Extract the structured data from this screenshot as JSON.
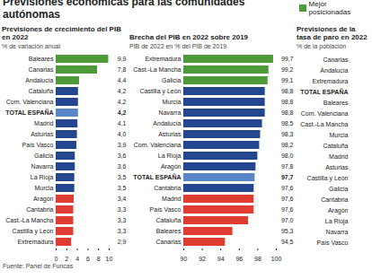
{
  "title": "Previsiones económicas para las comunidades autónomas",
  "legend": {
    "label": "Mejor posicionadas",
    "color": "#4e9a3a"
  },
  "source": "Fuente: Panel de Funcas",
  "chart_data": [
    {
      "type": "bar",
      "orientation": "horizontal",
      "title": "Previsiones de crecimiento del PIB en 2022",
      "subtitle": "% de variación anual",
      "categories": [
        "Baleares",
        "Canarias",
        "Andalucía",
        "Cataluña",
        "Com. Valenciana",
        "TOTAL ESPAÑA",
        "Madrid",
        "Asturias",
        "País Vasco",
        "Galicia",
        "Navarra",
        "La Rioja",
        "Murcia",
        "Aragón",
        "Cantabria",
        "Cast.-La Mancha",
        "Castilla y León",
        "Extremadura"
      ],
      "values": [
        9.9,
        7.8,
        4.4,
        4.2,
        4.2,
        4.2,
        4.1,
        4.0,
        3.9,
        3.6,
        3.6,
        3.5,
        3.5,
        3.4,
        3.3,
        3.3,
        3.3,
        2.9
      ],
      "value_labels": [
        "9,9",
        "7,8",
        "4,4",
        "4,2",
        "4,2",
        "4,2",
        "4,1",
        "4,0",
        "3,9",
        "3,6",
        "3,6",
        "3,5",
        "3,5",
        "3,4",
        "3,3",
        "3,3",
        "3,3",
        "2,9"
      ],
      "colors": [
        "#4e9a3a",
        "#4e9a3a",
        "#4e9a3a",
        "#24468e",
        "#24468e",
        "#5a86c8",
        "#24468e",
        "#24468e",
        "#24468e",
        "#24468e",
        "#24468e",
        "#24468e",
        "#24468e",
        "#e03c31",
        "#e03c31",
        "#e03c31",
        "#e03c31",
        "#e03c31"
      ],
      "xlim": [
        0,
        10
      ],
      "xticks": [
        0,
        2,
        4,
        6,
        8,
        10
      ],
      "data_labels": true,
      "grid": false
    },
    {
      "type": "bar",
      "orientation": "horizontal",
      "title": "Brecha del PIB en 2022 sobre 2019",
      "subtitle": "PIB de 2022 en % del PIB de 2019",
      "categories": [
        "Extremadura",
        "Cast.-La Mancha",
        "Galicia",
        "Castilla y León",
        "Murcia",
        "Navarra",
        "Andalucía",
        "Asturias",
        "Com. Valenciana",
        "La Rioja",
        "Aragón",
        "TOTAL ESPAÑA",
        "Cantabria",
        "Madrid",
        "País Vasco",
        "Cataluña",
        "Baleares",
        "Canarias"
      ],
      "values": [
        99.7,
        99.2,
        99.1,
        98.8,
        98.8,
        98.8,
        98.5,
        98.3,
        98.2,
        98.0,
        97.8,
        97.7,
        97.6,
        97.6,
        97.6,
        97.0,
        95.3,
        94.5
      ],
      "value_labels": [
        "99,7",
        "99,2",
        "99,1",
        "98,8",
        "98,8",
        "98,8",
        "98,5",
        "98,3",
        "98,2",
        "98,0",
        "97,8",
        "97,7",
        "97,6",
        "97,6",
        "97,6",
        "97,0",
        "95,3",
        "94,5"
      ],
      "colors": [
        "#4e9a3a",
        "#4e9a3a",
        "#4e9a3a",
        "#24468e",
        "#24468e",
        "#24468e",
        "#24468e",
        "#24468e",
        "#24468e",
        "#24468e",
        "#24468e",
        "#5a86c8",
        "#24468e",
        "#e03c31",
        "#e03c31",
        "#e03c31",
        "#e03c31",
        "#e03c31"
      ],
      "xlim": [
        90,
        100
      ],
      "xticks": [
        90,
        92,
        94,
        96,
        98,
        100
      ],
      "data_labels": true,
      "grid": false
    },
    {
      "type": "bar",
      "orientation": "horizontal",
      "title": "Previsiones de la tasa de paro en 2022",
      "subtitle": "% de la población",
      "categories": [
        "Canarias",
        "Andalucía",
        "Extremadura",
        "TOTAL ESPAÑA",
        "Baleares",
        "Com. Valenciana",
        "Cast.-La Mancha",
        "Murcia",
        "Cataluña",
        "Madrid",
        "Asturias",
        "Castilla y León",
        "Galicia",
        "Cantabria",
        "Aragón",
        "La Rioja",
        "Navarra",
        "País Vasco"
      ]
    }
  ]
}
